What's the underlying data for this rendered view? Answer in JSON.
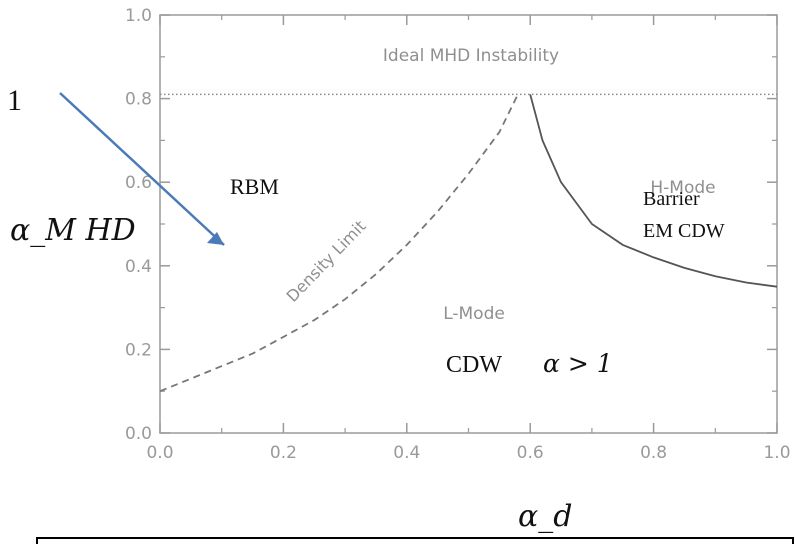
{
  "chart_data": {
    "type": "line",
    "xlabel": "α_d",
    "ylabel": "α_M HD",
    "xlim": [
      0.0,
      1.0
    ],
    "ylim": [
      0.0,
      1.0
    ],
    "grid": false,
    "xticks": [
      "0.0",
      "0.2",
      "0.4",
      "0.6",
      "0.8",
      "1.0"
    ],
    "yticks": [
      "0.0",
      "0.2",
      "0.4",
      "0.6",
      "0.8",
      "1.0"
    ],
    "series": [
      {
        "style": "dashed",
        "x": [
          0.0,
          0.05,
          0.1,
          0.15,
          0.2,
          0.25,
          0.3,
          0.35,
          0.4,
          0.45,
          0.5,
          0.55,
          0.58
        ],
        "y": [
          0.1,
          0.13,
          0.16,
          0.19,
          0.23,
          0.27,
          0.32,
          0.38,
          0.45,
          0.53,
          0.62,
          0.72,
          0.81
        ]
      },
      {
        "style": "solid",
        "x": [
          0.6,
          0.62,
          0.65,
          0.7,
          0.75,
          0.8,
          0.85,
          0.9,
          0.95,
          1.0
        ],
        "y": [
          0.81,
          0.7,
          0.6,
          0.5,
          0.45,
          0.42,
          0.395,
          0.375,
          0.36,
          0.35
        ]
      },
      {
        "style": "dotted",
        "x": [
          0.0,
          1.0
        ],
        "y": [
          0.81,
          0.81
        ]
      }
    ],
    "annotations": {
      "ideal_mhd": "Ideal MHD Instability",
      "h_mode": "H-Mode",
      "l_mode": "L-Mode",
      "density_limit": "Density Limit",
      "rbm": "RBM",
      "barrier": "Barrier",
      "em_cdw": "EM CDW",
      "cdw": "CDW",
      "alpha_cond": "α > 1",
      "left_fragment": "1"
    }
  },
  "colors": {
    "axis": "#9a9a9a",
    "arrow": "#4a7ab8",
    "curve": "#555555"
  }
}
